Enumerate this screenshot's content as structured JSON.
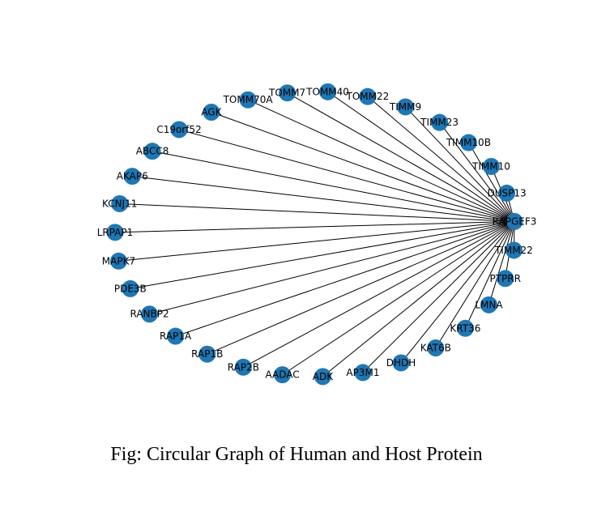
{
  "figure": {
    "caption": "Fig: Circular Graph of Human and Host Protein"
  },
  "graph": {
    "hub": "RAPGEF3",
    "node_color": "#1f77b4",
    "edge_color": "#000000",
    "nodes": [
      "TOMM7",
      "TOMM40",
      "TOMM22",
      "TIMM9",
      "TIMM23",
      "TIMM10B",
      "TIMM10",
      "DUSP13",
      "RAPGEF3",
      "TIMM22",
      "PTPRR",
      "LMNA",
      "KRT36",
      "KAT6B",
      "DHDH",
      "AP3M1",
      "ADK",
      "AADAC",
      "RAP2B",
      "RAP1B",
      "RAP1A",
      "RANBP2",
      "PDE3B",
      "MAPK7",
      "LRPAP1",
      "KCNJ11",
      "AKAP6",
      "ABCC8",
      "C19orf52",
      "AGK",
      "TOMM70A"
    ]
  }
}
